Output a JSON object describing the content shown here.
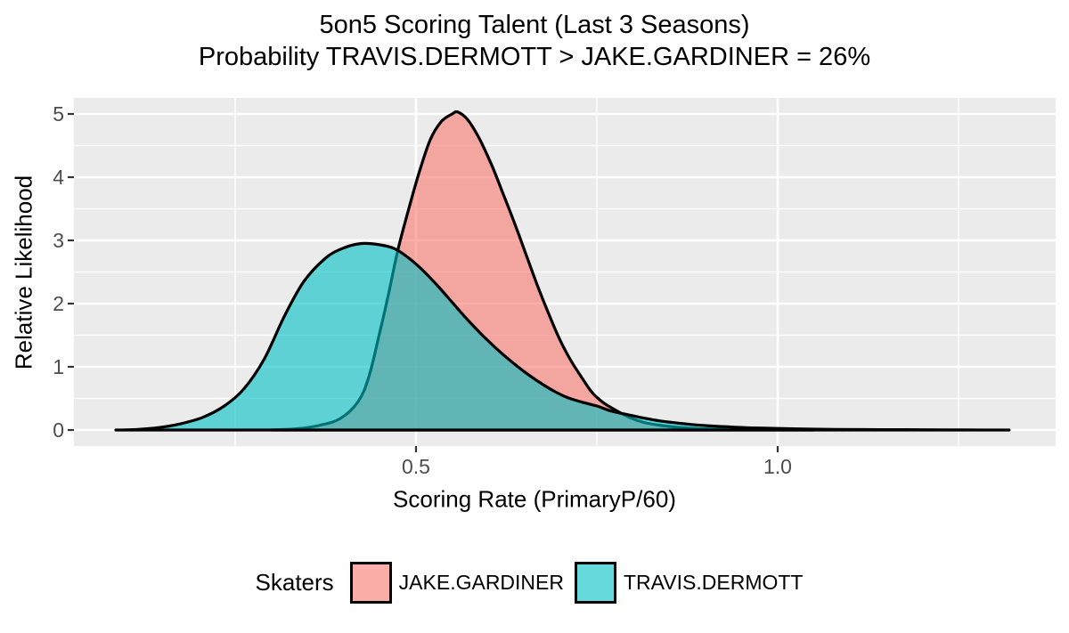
{
  "title": "5on5 Scoring Talent (Last 3 Seasons)",
  "subtitle": "Probability TRAVIS.DERMOTT > JAKE.GARDINER = 26%",
  "axes": {
    "x_label": "Scoring Rate (PrimaryP/60)",
    "y_label": "Relative Likelihood",
    "x_tick_labels": [
      "0.5",
      "1.0"
    ],
    "y_tick_labels": [
      "0",
      "1",
      "2",
      "3",
      "4",
      "5"
    ]
  },
  "legend": {
    "title": "Skaters",
    "items": [
      {
        "label": "JAKE.GARDINER",
        "fill": "#F8766D",
        "fill_alpha": 0.6,
        "stroke": "#000000"
      },
      {
        "label": "TRAVIS.DERMOTT",
        "fill": "#00BFC4",
        "fill_alpha": 0.6,
        "stroke": "#000000"
      }
    ]
  },
  "chart_data": {
    "type": "area",
    "subtype": "overlapping-density",
    "title": "5on5 Scoring Talent (Last 3 Seasons)",
    "subtitle": "Probability TRAVIS.DERMOTT > JAKE.GARDINER = 26%",
    "probability_dermott_gt_gardiner": "26%",
    "xlabel": "Scoring Rate (PrimaryP/60)",
    "ylabel": "Relative Likelihood",
    "xlim": [
      0.027,
      1.384
    ],
    "ylim": [
      0,
      5.25
    ],
    "x_major_ticks": [
      {
        "value": 0.5,
        "label": "0.5"
      },
      {
        "value": 1.0,
        "label": "1.0"
      }
    ],
    "x_minor_ticks": [
      0.25,
      0.75,
      1.25
    ],
    "y_major_ticks": [
      {
        "value": 0,
        "label": "0"
      },
      {
        "value": 1,
        "label": "1"
      },
      {
        "value": 2,
        "label": "2"
      },
      {
        "value": 3,
        "label": "3"
      },
      {
        "value": 4,
        "label": "4"
      },
      {
        "value": 5,
        "label": "5"
      }
    ],
    "y_minor_ticks": [
      0.5,
      1.5,
      2.5,
      3.5,
      4.5
    ],
    "panel_background": "#EBEBEB",
    "gridline_color": "#FFFFFF",
    "tick_mark_color": "#333333",
    "tick_text_color": "#4D4D4D",
    "legend_position": "bottom",
    "series": [
      {
        "name": "JAKE.GARDINER",
        "fill": "#F8766D",
        "fill_alpha": 0.6,
        "stroke": "#000000",
        "peak": {
          "x": 0.558,
          "y": 5.03
        },
        "points": [
          [
            0.3,
            0.0
          ],
          [
            0.335,
            0.02
          ],
          [
            0.365,
            0.07
          ],
          [
            0.395,
            0.18
          ],
          [
            0.42,
            0.45
          ],
          [
            0.435,
            0.85
          ],
          [
            0.45,
            1.55
          ],
          [
            0.462,
            2.15
          ],
          [
            0.475,
            2.85
          ],
          [
            0.49,
            3.5
          ],
          [
            0.505,
            4.1
          ],
          [
            0.52,
            4.6
          ],
          [
            0.535,
            4.88
          ],
          [
            0.55,
            5.0
          ],
          [
            0.558,
            5.03
          ],
          [
            0.572,
            4.9
          ],
          [
            0.588,
            4.6
          ],
          [
            0.605,
            4.18
          ],
          [
            0.62,
            3.75
          ],
          [
            0.637,
            3.25
          ],
          [
            0.653,
            2.75
          ],
          [
            0.668,
            2.28
          ],
          [
            0.683,
            1.85
          ],
          [
            0.698,
            1.45
          ],
          [
            0.713,
            1.12
          ],
          [
            0.728,
            0.85
          ],
          [
            0.743,
            0.6
          ],
          [
            0.758,
            0.44
          ],
          [
            0.775,
            0.32
          ],
          [
            0.795,
            0.2
          ],
          [
            0.815,
            0.12
          ],
          [
            0.84,
            0.07
          ],
          [
            0.87,
            0.035
          ],
          [
            0.91,
            0.015
          ],
          [
            0.96,
            0.006
          ],
          [
            1.02,
            0.002
          ],
          [
            1.05,
            0.0
          ]
        ]
      },
      {
        "name": "TRAVIS.DERMOTT",
        "fill": "#00BFC4",
        "fill_alpha": 0.6,
        "stroke": "#000000",
        "peak": {
          "x": 0.425,
          "y": 2.95
        },
        "points": [
          [
            0.085,
            0.0
          ],
          [
            0.115,
            0.01
          ],
          [
            0.145,
            0.04
          ],
          [
            0.175,
            0.1
          ],
          [
            0.205,
            0.2
          ],
          [
            0.235,
            0.38
          ],
          [
            0.262,
            0.65
          ],
          [
            0.29,
            1.12
          ],
          [
            0.318,
            1.8
          ],
          [
            0.345,
            2.35
          ],
          [
            0.375,
            2.72
          ],
          [
            0.4,
            2.88
          ],
          [
            0.425,
            2.95
          ],
          [
            0.45,
            2.93
          ],
          [
            0.47,
            2.87
          ],
          [
            0.49,
            2.72
          ],
          [
            0.51,
            2.52
          ],
          [
            0.53,
            2.28
          ],
          [
            0.55,
            2.02
          ],
          [
            0.57,
            1.76
          ],
          [
            0.59,
            1.52
          ],
          [
            0.61,
            1.3
          ],
          [
            0.63,
            1.1
          ],
          [
            0.65,
            0.92
          ],
          [
            0.67,
            0.76
          ],
          [
            0.69,
            0.62
          ],
          [
            0.71,
            0.51
          ],
          [
            0.73,
            0.44
          ],
          [
            0.75,
            0.38
          ],
          [
            0.77,
            0.3
          ],
          [
            0.79,
            0.25
          ],
          [
            0.81,
            0.2
          ],
          [
            0.84,
            0.14
          ],
          [
            0.87,
            0.1
          ],
          [
            0.9,
            0.07
          ],
          [
            0.94,
            0.045
          ],
          [
            0.98,
            0.03
          ],
          [
            1.03,
            0.018
          ],
          [
            1.08,
            0.01
          ],
          [
            1.14,
            0.006
          ],
          [
            1.2,
            0.004
          ],
          [
            1.26,
            0.002
          ],
          [
            1.32,
            0.0
          ]
        ]
      }
    ]
  }
}
